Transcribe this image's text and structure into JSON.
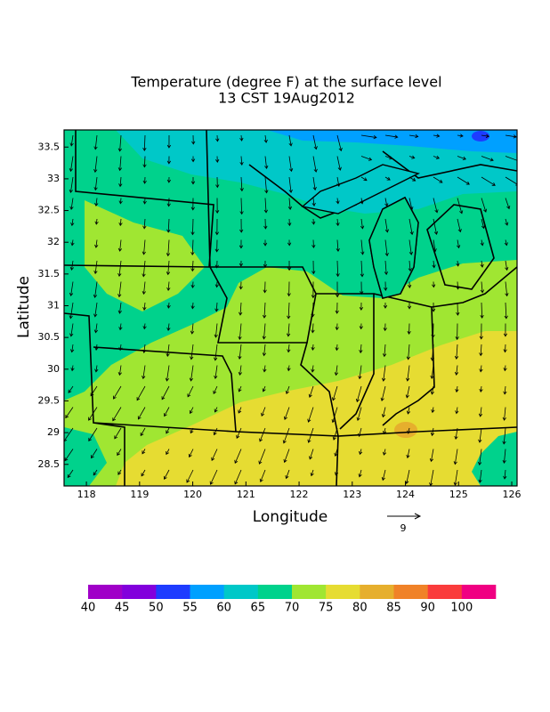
{
  "title": "Temperature (degree F) at the surface level",
  "subtitle": "13 CST 19Aug2012",
  "x_axis": {
    "label": "Longitude",
    "range": [
      117.58,
      126.1
    ],
    "ticks": [
      118,
      119,
      120,
      121,
      122,
      123,
      124,
      125,
      126
    ]
  },
  "y_axis": {
    "label": "Latitude",
    "range": [
      28.16,
      33.77
    ],
    "ticks": [
      28.5,
      29,
      29.5,
      30,
      30.5,
      31,
      31.5,
      32,
      32.5,
      33,
      33.5
    ]
  },
  "reference_vector": {
    "label": "9"
  },
  "colorbar": {
    "colors": [
      "#a000c8",
      "#8200dc",
      "#1e3cff",
      "#00a0ff",
      "#00c8c8",
      "#00d28c",
      "#a0e632",
      "#e6dc32",
      "#e6af2d",
      "#f08228",
      "#fa3c3c",
      "#f00082"
    ],
    "labels": [
      40,
      45,
      50,
      55,
      60,
      65,
      70,
      75,
      80,
      85,
      90,
      100
    ]
  }
}
